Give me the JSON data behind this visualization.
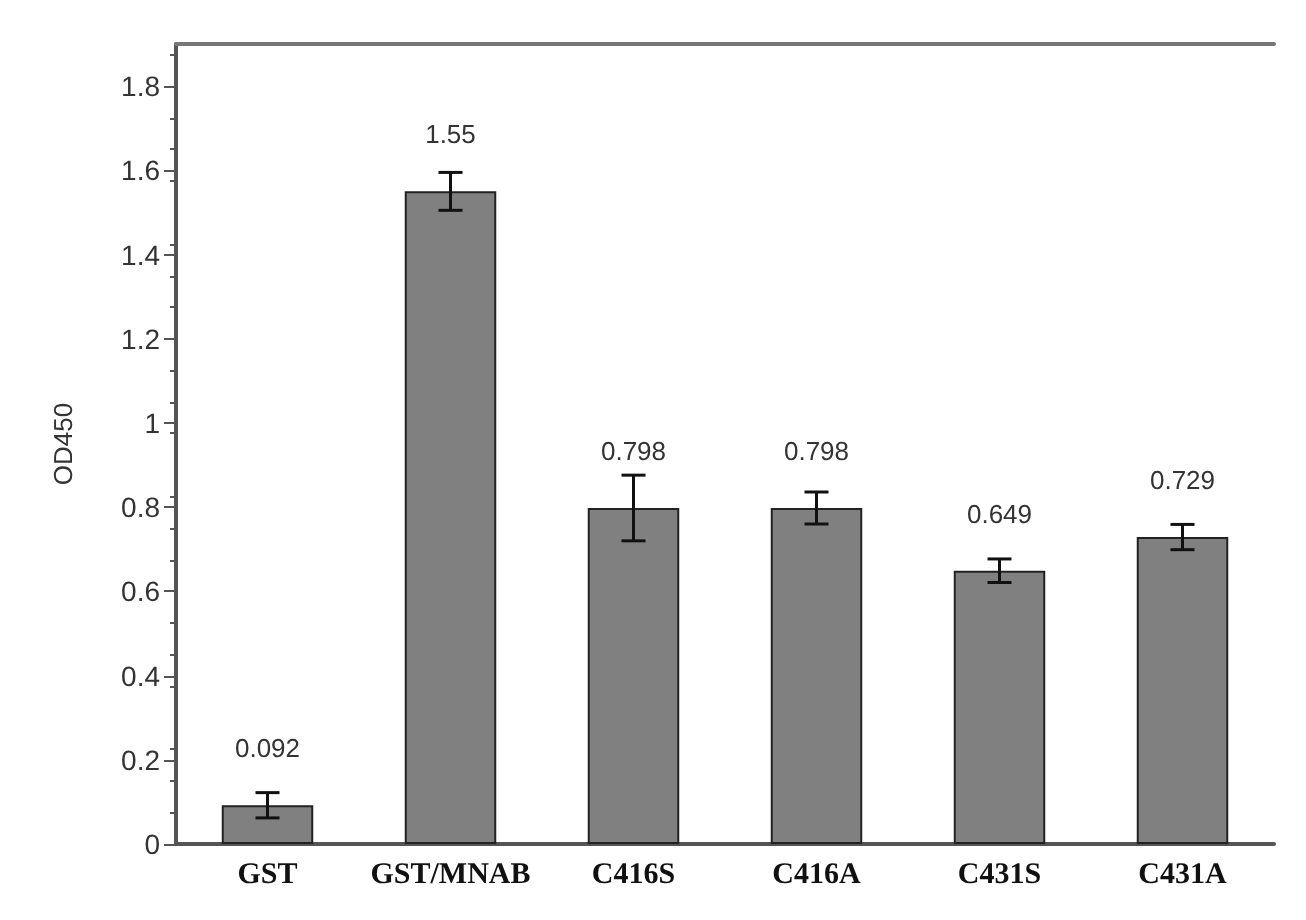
{
  "chart_data": {
    "type": "bar",
    "ylabel": "OD450",
    "categories": [
      "GST",
      "GST/MNAB",
      "C416S",
      "C416A",
      "C431S",
      "C431A"
    ],
    "values": [
      0.092,
      1.55,
      0.798,
      0.798,
      0.649,
      0.729
    ],
    "errors": [
      0.03,
      0.045,
      0.078,
      0.038,
      0.028,
      0.03
    ],
    "color": "#808080",
    "data_labels": true,
    "grid": false,
    "ylim": [
      0,
      1.9
    ],
    "yticks": [
      0,
      0.2,
      0.4,
      0.6,
      0.8,
      1,
      1.2,
      1.4,
      1.6,
      1.8
    ]
  }
}
